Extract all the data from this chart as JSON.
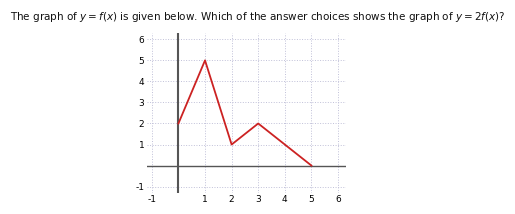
{
  "title": "The graph of $y = f(x)$ is given below. Which of the answer choices shows the graph of $y = 2f(x)$?",
  "title_fontsize": 7.5,
  "line_x": [
    0,
    1,
    2,
    3,
    5
  ],
  "line_y": [
    2,
    5,
    1,
    2,
    0
  ],
  "line_color": "#cc2222",
  "line_width": 1.3,
  "xlim": [
    -1.2,
    6.3
  ],
  "ylim": [
    -1.3,
    6.3
  ],
  "xticks": [
    -1,
    1,
    2,
    3,
    4,
    5,
    6
  ],
  "yticks": [
    -1,
    1,
    2,
    3,
    4,
    5,
    6
  ],
  "tick_fontsize": 6.5,
  "grid_color": "#c0c0d8",
  "grid_linestyle": ":",
  "grid_linewidth": 0.7,
  "xaxis_color": "#555555",
  "yaxis_color": "#555555",
  "xaxis_linewidth": 1.0,
  "yaxis_linewidth": 1.5,
  "bg_color": "#ffffff"
}
